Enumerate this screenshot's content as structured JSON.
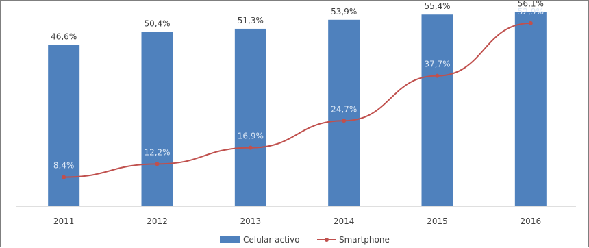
{
  "chart_data": {
    "type": "bar",
    "categories": [
      "2011",
      "2012",
      "2013",
      "2014",
      "2015",
      "2016"
    ],
    "ylim": [
      0,
      60
    ],
    "grid": false,
    "legend_position": "bottom",
    "colors": {
      "bar": "#4f81bd",
      "line": "#c0504d"
    },
    "series": [
      {
        "name": "Celular activo",
        "type": "bar",
        "values": [
          46.6,
          50.4,
          51.3,
          53.9,
          55.4,
          56.1
        ],
        "labels": [
          "46,6%",
          "50,4%",
          "51,3%",
          "53,9%",
          "55,4%",
          "56,1%"
        ]
      },
      {
        "name": "Smartphone",
        "type": "line",
        "values": [
          8.4,
          12.2,
          16.9,
          24.7,
          37.7,
          52.9
        ],
        "labels": [
          "8,4%",
          "12,2%",
          "16,9%",
          "24,7%",
          "37,7%",
          "52,9%"
        ]
      }
    ]
  }
}
